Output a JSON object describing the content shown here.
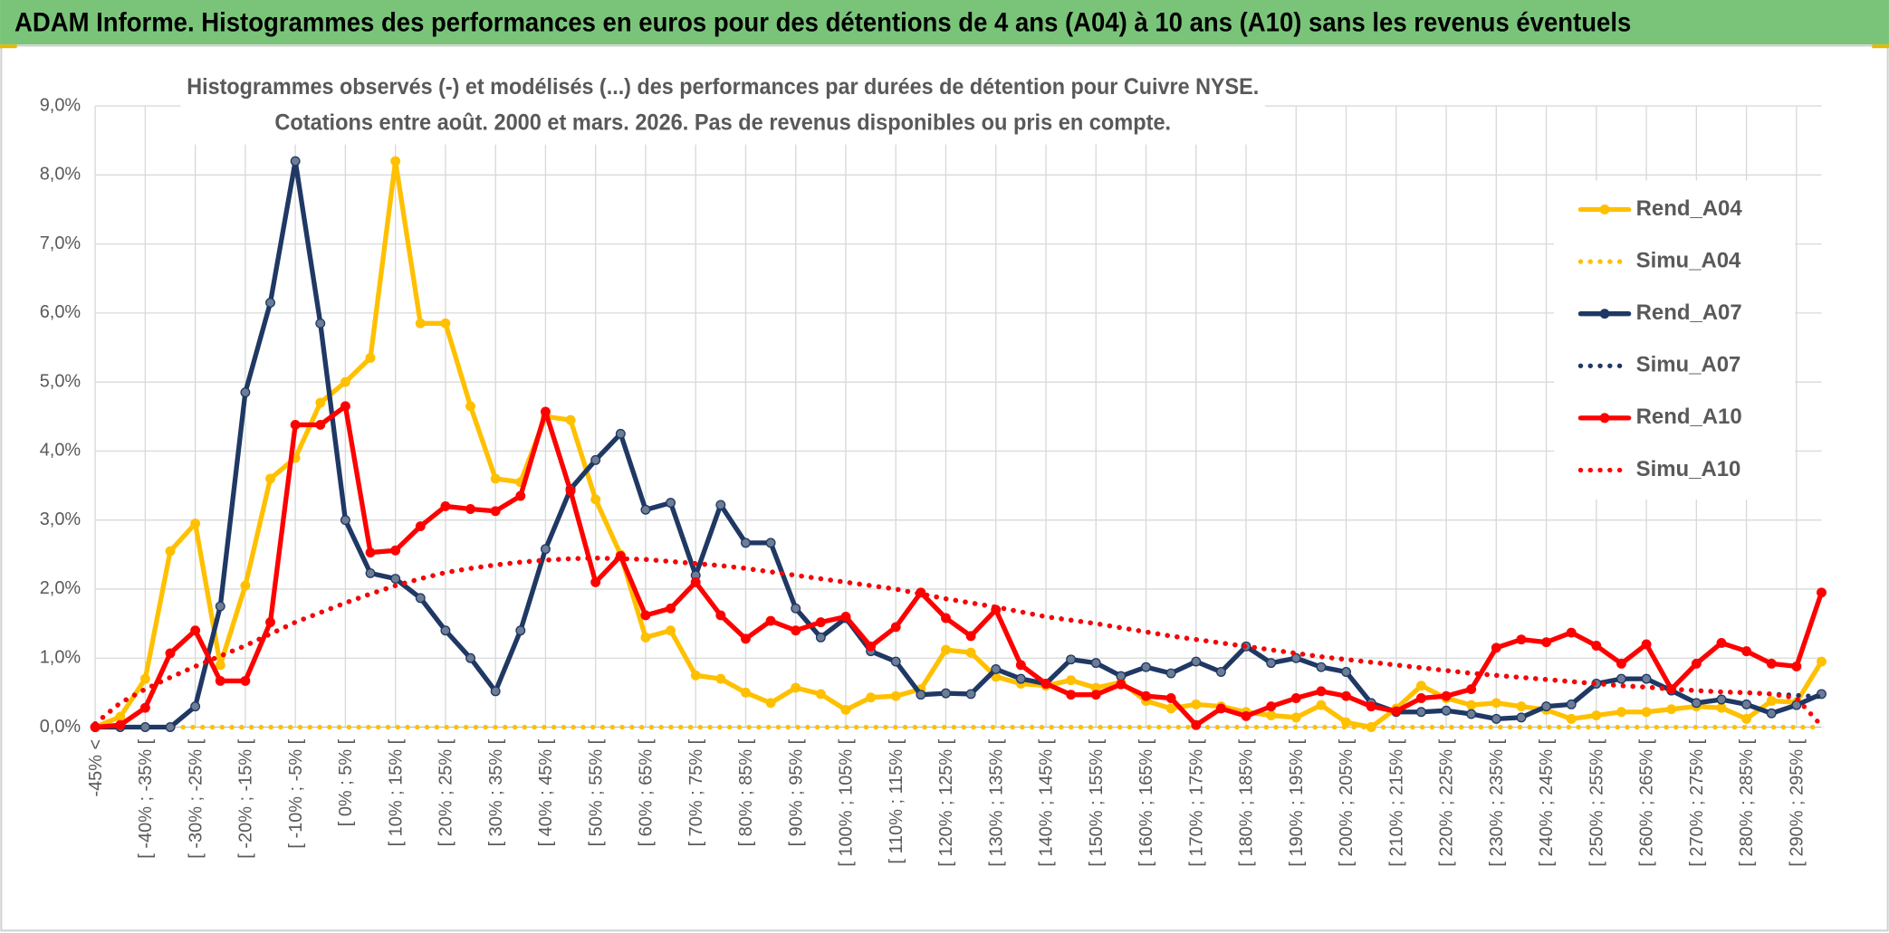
{
  "chart_data": {
    "type": "line",
    "title": "ADAM Informe. Histogrammes des performances en euros pour des détentions de 4 ans (A04) à 10 ans (A10) sans les revenus éventuels",
    "subtitle": [
      "Histogrammes observés (-) et modélisés (...) des performances par durées de détention pour Cuivre NYSE.",
      "Cotations entre août. 2000 et mars. 2026. Pas de revenus disponibles ou pris en compte."
    ],
    "categories": [
      "-45% <",
      null,
      "[ -40% ; -35% [",
      null,
      "[ -30% ; -25% [",
      null,
      "[ -20% ; -15% [",
      null,
      "[ -10% ; -5% [",
      null,
      "[ 0% ; 5% [",
      null,
      "[ 10% ; 15% [",
      null,
      "[ 20% ; 25% [",
      null,
      "[ 30% ; 35% [",
      null,
      "[ 40% ; 45% [",
      null,
      "[ 50% ; 55% [",
      null,
      "[ 60% ; 65% [",
      null,
      "[ 70% ; 75% [",
      null,
      "[ 80% ; 85% [",
      null,
      "[ 90% ; 95% [",
      null,
      "[ 100% ; 105% [",
      null,
      "[ 110% ; 115% [",
      null,
      "[ 120% ; 125% [",
      null,
      "[ 130% ; 135% [",
      null,
      "[ 140% ; 145% [",
      null,
      "[ 150% ; 155% [",
      null,
      "[ 160% ; 165% [",
      null,
      "[ 170% ; 175% [",
      null,
      "[ 180% ; 185% [",
      null,
      "[ 190% ; 195% [",
      null,
      "[ 200% ; 205% [",
      null,
      "[ 210% ; 215% [",
      null,
      "[ 220% ; 225% [",
      null,
      "[ 230% ; 235% [",
      null,
      "[ 240% ; 245% [",
      null,
      "[ 250% ; 255% [",
      null,
      "[ 260% ; 265% [",
      null,
      "[ 270% ; 275% [",
      null,
      "[ 280% ; 285% [",
      null,
      "[ 290% ; 295% [",
      null
    ],
    "series": [
      {
        "name": "Rend_A04",
        "color": "#ffc000",
        "style": "solid",
        "markers": true,
        "values": [
          0,
          0.15,
          0.7,
          2.55,
          2.95,
          0.9,
          2.05,
          3.6,
          3.9,
          4.7,
          5.0,
          5.35,
          8.2,
          5.85,
          5.85,
          4.65,
          3.6,
          3.55,
          4.5,
          4.45,
          3.3,
          2.5,
          1.3,
          1.4,
          0.75,
          0.7,
          0.5,
          0.35,
          0.57,
          0.48,
          0.25,
          0.43,
          0.45,
          0.55,
          1.12,
          1.08,
          0.73,
          0.63,
          0.6,
          0.68,
          0.57,
          0.65,
          0.38,
          0.27,
          0.33,
          0.3,
          0.22,
          0.17,
          0.14,
          0.32,
          0.07,
          0,
          0.27,
          0.6,
          0.42,
          0.32,
          0.35,
          0.3,
          0.25,
          0.12,
          0.17,
          0.22,
          0.22,
          0.26,
          0.3,
          0.28,
          0.12,
          0.38,
          0.36,
          0.95
        ]
      },
      {
        "name": "Simu_A04",
        "color": "#ffc000",
        "style": "dotted",
        "markers": false,
        "values": [
          0,
          0,
          0,
          0,
          0,
          0,
          0,
          0,
          0,
          0,
          0,
          0,
          0,
          0,
          0,
          0,
          0,
          0,
          0,
          0,
          0,
          0,
          0,
          0,
          0,
          0,
          0,
          0,
          0,
          0,
          0,
          0,
          0,
          0,
          0,
          0,
          0,
          0,
          0,
          0,
          0,
          0,
          0,
          0,
          0,
          0,
          0,
          0,
          0,
          0,
          0,
          0,
          0,
          0,
          0,
          0,
          0,
          0,
          0,
          0,
          0,
          0,
          0,
          0,
          0,
          0,
          0,
          0,
          0,
          0
        ]
      },
      {
        "name": "Rend_A07",
        "color": "#1f3864",
        "style": "solid",
        "markers": true,
        "values": [
          0,
          0,
          0,
          0,
          0.3,
          1.75,
          4.85,
          6.15,
          8.2,
          5.85,
          3.0,
          2.23,
          2.15,
          1.87,
          1.4,
          1.0,
          0.52,
          1.4,
          2.58,
          3.45,
          3.87,
          4.25,
          3.15,
          3.25,
          2.2,
          3.22,
          2.67,
          2.67,
          1.72,
          1.3,
          1.58,
          1.1,
          0.95,
          0.47,
          0.49,
          0.48,
          0.84,
          0.7,
          0.63,
          0.98,
          0.93,
          0.74,
          0.87,
          0.78,
          0.95,
          0.8,
          1.17,
          0.93,
          1.0,
          0.87,
          0.8,
          0.35,
          0.22,
          0.22,
          0.24,
          0.19,
          0.12,
          0.14,
          0.3,
          0.33,
          0.63,
          0.7,
          0.7,
          0.53,
          0.35,
          0.4,
          0.33,
          0.2,
          0.32,
          0.48
        ]
      },
      {
        "name": "Simu_A07",
        "color": "#1f3864",
        "style": "dotted",
        "markers": false,
        "values": [
          0.05,
          0.35,
          0.55,
          0.72,
          0.88,
          1.03,
          1.18,
          1.35,
          1.52,
          1.66,
          1.8,
          1.93,
          2.05,
          2.15,
          2.24,
          2.3,
          2.35,
          2.39,
          2.42,
          2.44,
          2.45,
          2.44,
          2.43,
          2.4,
          2.37,
          2.34,
          2.3,
          2.25,
          2.2,
          2.15,
          2.1,
          2.05,
          2.0,
          1.93,
          1.86,
          1.8,
          1.74,
          1.67,
          1.6,
          1.55,
          1.5,
          1.44,
          1.38,
          1.32,
          1.27,
          1.22,
          1.17,
          1.12,
          1.07,
          1.02,
          0.98,
          0.94,
          0.9,
          0.86,
          0.82,
          0.78,
          0.75,
          0.72,
          0.69,
          0.66,
          0.63,
          0.6,
          0.58,
          0.55,
          0.53,
          0.51,
          0.5,
          0.48,
          0.46,
          0.44
        ]
      },
      {
        "name": "Rend_A10",
        "color": "#ff0000",
        "style": "solid",
        "markers": true,
        "values": [
          0,
          0.03,
          0.28,
          1.07,
          1.4,
          0.67,
          0.67,
          1.52,
          4.38,
          4.38,
          4.65,
          2.53,
          2.56,
          2.91,
          3.2,
          3.16,
          3.13,
          3.35,
          4.57,
          3.42,
          2.1,
          2.48,
          1.62,
          1.72,
          2.1,
          1.62,
          1.28,
          1.54,
          1.4,
          1.52,
          1.6,
          1.17,
          1.45,
          1.95,
          1.58,
          1.32,
          1.7,
          0.9,
          0.63,
          0.47,
          0.47,
          0.62,
          0.45,
          0.42,
          0.03,
          0.27,
          0.16,
          0.3,
          0.42,
          0.52,
          0.45,
          0.3,
          0.23,
          0.42,
          0.45,
          0.55,
          1.15,
          1.27,
          1.23,
          1.37,
          1.18,
          0.92,
          1.2,
          0.55,
          0.92,
          1.22,
          1.1,
          0.92,
          0.88,
          1.95
        ]
      },
      {
        "name": "Simu_A10",
        "color": "#ff0000",
        "style": "dotted",
        "markers": false,
        "values": [
          0.05,
          0.35,
          0.55,
          0.72,
          0.88,
          1.03,
          1.18,
          1.35,
          1.52,
          1.66,
          1.8,
          1.93,
          2.05,
          2.15,
          2.24,
          2.3,
          2.35,
          2.39,
          2.42,
          2.44,
          2.45,
          2.44,
          2.43,
          2.4,
          2.37,
          2.34,
          2.3,
          2.25,
          2.2,
          2.15,
          2.1,
          2.05,
          2.0,
          1.93,
          1.86,
          1.8,
          1.74,
          1.67,
          1.6,
          1.55,
          1.5,
          1.44,
          1.38,
          1.32,
          1.27,
          1.22,
          1.17,
          1.12,
          1.07,
          1.02,
          0.98,
          0.94,
          0.9,
          0.86,
          0.82,
          0.78,
          0.75,
          0.72,
          0.69,
          0.66,
          0.63,
          0.6,
          0.58,
          0.55,
          0.53,
          0.51,
          0.5,
          0.48,
          0.42,
          0.02
        ]
      }
    ],
    "ylim": [
      0,
      9
    ],
    "yticks": [
      {
        "value": 0,
        "label": "0,0%"
      },
      {
        "value": 1,
        "label": "1,0%"
      },
      {
        "value": 2,
        "label": "2,0%"
      },
      {
        "value": 3,
        "label": "3,0%"
      },
      {
        "value": 4,
        "label": "4,0%"
      },
      {
        "value": 5,
        "label": "5,0%"
      },
      {
        "value": 6,
        "label": "6,0%"
      },
      {
        "value": 7,
        "label": "7,0%"
      },
      {
        "value": 8,
        "label": "8,0%"
      },
      {
        "value": 9,
        "label": "9,0%"
      }
    ],
    "grid": true,
    "legend": "right"
  }
}
